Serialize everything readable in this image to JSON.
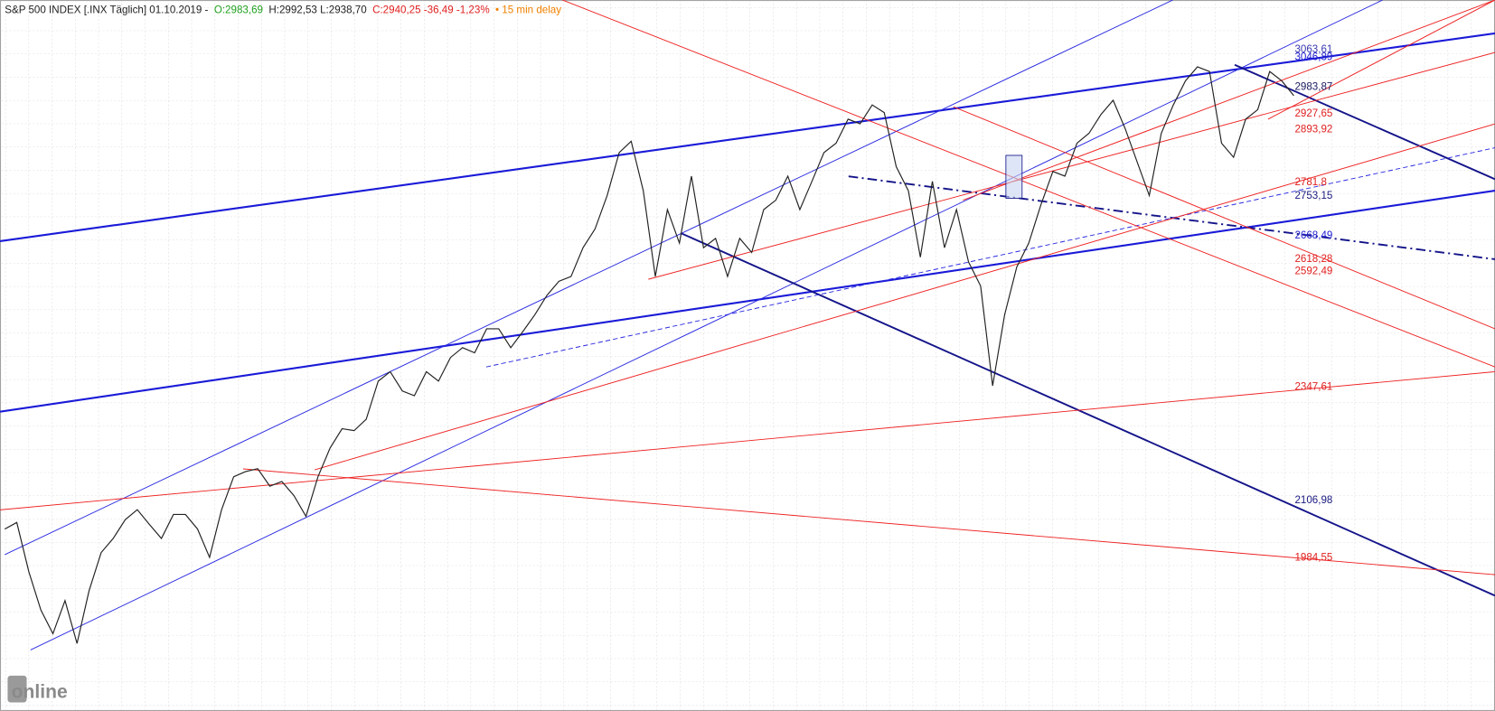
{
  "chart_data": {
    "type": "line",
    "header": {
      "title": "S&P 500 INDEX [.INX Täglich] 01.10.2019 -",
      "open": "O:2983,69",
      "high_low": "H:2992,53 L:2938,70",
      "close": "C:2940,25 -36,49 -1,23%",
      "delay": "• 15 min delay"
    },
    "logo": "online",
    "color": "#222222",
    "ylim": [
      1672,
      3168.8
    ],
    "values": [
      2046,
      2060,
      1955,
      1874,
      1824,
      1894,
      1803,
      1915,
      1996,
      2026,
      2066,
      2087,
      2056,
      2026,
      2077,
      2077,
      2046,
      1986,
      2087,
      2157,
      2168,
      2174,
      2137,
      2147,
      2117,
      2073,
      2157,
      2218,
      2259,
      2255,
      2279,
      2360,
      2380,
      2339,
      2329,
      2380,
      2360,
      2410,
      2431,
      2420,
      2471,
      2471,
      2431,
      2465,
      2501,
      2542,
      2572,
      2582,
      2643,
      2683,
      2754,
      2845,
      2869,
      2764,
      2582,
      2724,
      2653,
      2795,
      2643,
      2663,
      2582,
      2663,
      2633,
      2724,
      2744,
      2795,
      2724,
      2784,
      2845,
      2865,
      2916,
      2906,
      2946,
      2930,
      2815,
      2764,
      2623,
      2784,
      2643,
      2724,
      2613,
      2562,
      2350,
      2501,
      2602,
      2653,
      2734,
      2805,
      2795,
      2865,
      2886,
      2926,
      2956,
      2896,
      2825,
      2754,
      2886,
      2946,
      2997,
      3027,
      3017,
      2865,
      2835,
      2916,
      2936,
      3017,
      2997,
      2966
    ],
    "price_labels": [
      {
        "value": 3063.61,
        "label": "3063,61",
        "color": "#3a3ab0"
      },
      {
        "value": 3046.89,
        "label": "3046,89",
        "color": "#2020d0"
      },
      {
        "value": 2983.87,
        "label": "2983,87",
        "color": "#1a1a60"
      },
      {
        "value": 2927.65,
        "label": "2927,65",
        "color": "#e02020"
      },
      {
        "value": 2893.92,
        "label": "2893,92",
        "color": "#e02020"
      },
      {
        "value": 2781.8,
        "label": "2781,8",
        "color": "#e02020"
      },
      {
        "value": 2753.15,
        "label": "2753,15",
        "color": "#1a1a80"
      },
      {
        "value": 2668.49,
        "label": "2668,49",
        "color": "#2020d0"
      },
      {
        "value": 2618.28,
        "label": "2618,28",
        "color": "#e02020"
      },
      {
        "value": 2592.49,
        "label": "2592,49",
        "color": "#e02020"
      },
      {
        "value": 2347.61,
        "label": "2347,61",
        "color": "#e02020"
      },
      {
        "value": 2106.98,
        "label": "2106,98",
        "color": "#1a1a80"
      },
      {
        "value": 1984.55,
        "label": "1984,55",
        "color": "#e02020"
      }
    ]
  }
}
